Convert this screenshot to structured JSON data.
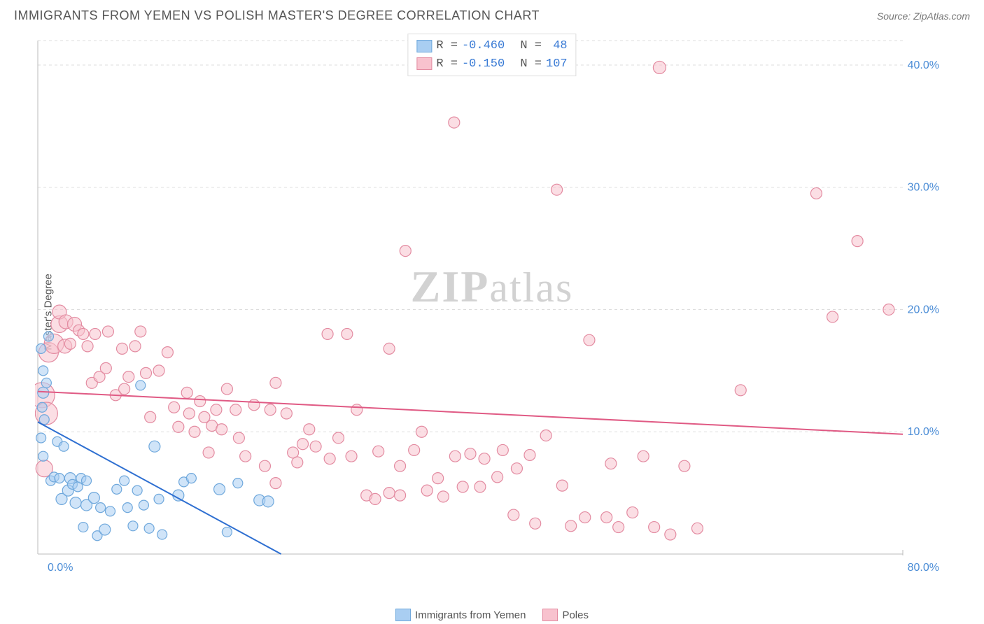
{
  "title": "IMMIGRANTS FROM YEMEN VS POLISH MASTER'S DEGREE CORRELATION CHART",
  "source": "Source: ZipAtlas.com",
  "y_axis_label": "Master's Degree",
  "watermark_a": "ZIP",
  "watermark_b": "atlas",
  "chart": {
    "type": "scatter",
    "xlim": [
      0,
      80
    ],
    "ylim": [
      0,
      42
    ],
    "x_label_min": "0.0%",
    "x_label_max": "80.0%",
    "y_ticks": [
      10,
      20,
      30,
      40
    ],
    "y_tick_labels": [
      "10.0%",
      "20.0%",
      "30.0%",
      "40.0%"
    ],
    "grid_color": "#dddddd",
    "axis_color": "#bbbbbb",
    "tick_label_color": "#4a8cd6",
    "background": "#ffffff",
    "series": [
      {
        "name": "Immigrants from Yemen",
        "fill": "#a9cef2",
        "fill_opacity": 0.55,
        "stroke": "#6fa8dc",
        "line_color": "#2e6fd1",
        "line_width": 2,
        "trend": {
          "x1": 0,
          "y1": 10.8,
          "x2": 22.5,
          "y2": 0
        },
        "R": "-0.460",
        "N": "48",
        "points": [
          {
            "x": 0.3,
            "y": 16.8,
            "r": 7
          },
          {
            "x": 0.5,
            "y": 15.0,
            "r": 7
          },
          {
            "x": 0.4,
            "y": 12.0,
            "r": 7
          },
          {
            "x": 0.5,
            "y": 13.2,
            "r": 8
          },
          {
            "x": 0.3,
            "y": 9.5,
            "r": 7
          },
          {
            "x": 0.6,
            "y": 11.0,
            "r": 7
          },
          {
            "x": 0.5,
            "y": 8.0,
            "r": 7
          },
          {
            "x": 0.8,
            "y": 14.0,
            "r": 7
          },
          {
            "x": 1.0,
            "y": 17.8,
            "r": 7
          },
          {
            "x": 1.2,
            "y": 6.0,
            "r": 7
          },
          {
            "x": 1.5,
            "y": 6.3,
            "r": 7
          },
          {
            "x": 1.8,
            "y": 9.2,
            "r": 7
          },
          {
            "x": 2.2,
            "y": 4.5,
            "r": 8
          },
          {
            "x": 2.0,
            "y": 6.2,
            "r": 7
          },
          {
            "x": 2.4,
            "y": 8.8,
            "r": 7
          },
          {
            "x": 2.8,
            "y": 5.2,
            "r": 8
          },
          {
            "x": 3.0,
            "y": 6.2,
            "r": 8
          },
          {
            "x": 3.2,
            "y": 5.7,
            "r": 7
          },
          {
            "x": 3.5,
            "y": 4.2,
            "r": 8
          },
          {
            "x": 3.7,
            "y": 5.5,
            "r": 7
          },
          {
            "x": 4.0,
            "y": 6.2,
            "r": 7
          },
          {
            "x": 4.2,
            "y": 2.2,
            "r": 7
          },
          {
            "x": 4.5,
            "y": 4.0,
            "r": 8
          },
          {
            "x": 4.5,
            "y": 6.0,
            "r": 7
          },
          {
            "x": 5.2,
            "y": 4.6,
            "r": 8
          },
          {
            "x": 5.5,
            "y": 1.5,
            "r": 7
          },
          {
            "x": 5.8,
            "y": 3.8,
            "r": 7
          },
          {
            "x": 6.2,
            "y": 2.0,
            "r": 8
          },
          {
            "x": 6.7,
            "y": 3.5,
            "r": 7
          },
          {
            "x": 7.3,
            "y": 5.3,
            "r": 7
          },
          {
            "x": 8.0,
            "y": 6.0,
            "r": 7
          },
          {
            "x": 8.3,
            "y": 3.8,
            "r": 7
          },
          {
            "x": 8.8,
            "y": 2.3,
            "r": 7
          },
          {
            "x": 9.2,
            "y": 5.2,
            "r": 7
          },
          {
            "x": 9.5,
            "y": 13.8,
            "r": 7
          },
          {
            "x": 9.8,
            "y": 4.0,
            "r": 7
          },
          {
            "x": 10.3,
            "y": 2.1,
            "r": 7
          },
          {
            "x": 10.8,
            "y": 8.8,
            "r": 8
          },
          {
            "x": 11.2,
            "y": 4.5,
            "r": 7
          },
          {
            "x": 11.5,
            "y": 1.6,
            "r": 7
          },
          {
            "x": 13.0,
            "y": 4.8,
            "r": 8
          },
          {
            "x": 13.5,
            "y": 5.9,
            "r": 7
          },
          {
            "x": 14.2,
            "y": 6.2,
            "r": 7
          },
          {
            "x": 16.8,
            "y": 5.3,
            "r": 8
          },
          {
            "x": 17.5,
            "y": 1.8,
            "r": 7
          },
          {
            "x": 18.5,
            "y": 5.8,
            "r": 7
          },
          {
            "x": 20.5,
            "y": 4.4,
            "r": 8
          },
          {
            "x": 21.3,
            "y": 4.3,
            "r": 8
          }
        ]
      },
      {
        "name": "Poles",
        "fill": "#f8c2ce",
        "fill_opacity": 0.55,
        "stroke": "#e38ba1",
        "line_color": "#e05a84",
        "line_width": 2,
        "trend": {
          "x1": 0,
          "y1": 13.3,
          "x2": 80,
          "y2": 9.8
        },
        "R": "-0.150",
        "N": "107",
        "points": [
          {
            "x": 0.4,
            "y": 13.0,
            "r": 18
          },
          {
            "x": 0.8,
            "y": 11.5,
            "r": 16
          },
          {
            "x": 1.0,
            "y": 16.5,
            "r": 14
          },
          {
            "x": 0.6,
            "y": 7.0,
            "r": 12
          },
          {
            "x": 1.5,
            "y": 17.2,
            "r": 14
          },
          {
            "x": 2.0,
            "y": 18.8,
            "r": 12
          },
          {
            "x": 2.0,
            "y": 19.8,
            "r": 10
          },
          {
            "x": 2.6,
            "y": 19.0,
            "r": 10
          },
          {
            "x": 2.5,
            "y": 17.0,
            "r": 10
          },
          {
            "x": 3.4,
            "y": 18.8,
            "r": 10
          },
          {
            "x": 3.0,
            "y": 17.2,
            "r": 8
          },
          {
            "x": 3.8,
            "y": 18.3,
            "r": 8
          },
          {
            "x": 4.2,
            "y": 18.0,
            "r": 8
          },
          {
            "x": 4.6,
            "y": 17.0,
            "r": 8
          },
          {
            "x": 5.3,
            "y": 18.0,
            "r": 8
          },
          {
            "x": 5.0,
            "y": 14.0,
            "r": 8
          },
          {
            "x": 5.7,
            "y": 14.5,
            "r": 8
          },
          {
            "x": 6.3,
            "y": 15.2,
            "r": 8
          },
          {
            "x": 6.5,
            "y": 18.2,
            "r": 8
          },
          {
            "x": 7.2,
            "y": 13.0,
            "r": 8
          },
          {
            "x": 7.8,
            "y": 16.8,
            "r": 8
          },
          {
            "x": 8.0,
            "y": 13.5,
            "r": 8
          },
          {
            "x": 8.4,
            "y": 14.5,
            "r": 8
          },
          {
            "x": 9.0,
            "y": 17.0,
            "r": 8
          },
          {
            "x": 9.5,
            "y": 18.2,
            "r": 8
          },
          {
            "x": 10.0,
            "y": 14.8,
            "r": 8
          },
          {
            "x": 10.4,
            "y": 11.2,
            "r": 8
          },
          {
            "x": 11.2,
            "y": 15.0,
            "r": 8
          },
          {
            "x": 12.0,
            "y": 16.5,
            "r": 8
          },
          {
            "x": 12.6,
            "y": 12.0,
            "r": 8
          },
          {
            "x": 13.0,
            "y": 10.4,
            "r": 8
          },
          {
            "x": 13.8,
            "y": 13.2,
            "r": 8
          },
          {
            "x": 14.0,
            "y": 11.5,
            "r": 8
          },
          {
            "x": 14.5,
            "y": 10.0,
            "r": 8
          },
          {
            "x": 15.0,
            "y": 12.5,
            "r": 8
          },
          {
            "x": 15.4,
            "y": 11.2,
            "r": 8
          },
          {
            "x": 15.8,
            "y": 8.3,
            "r": 8
          },
          {
            "x": 16.1,
            "y": 10.5,
            "r": 8
          },
          {
            "x": 16.5,
            "y": 11.8,
            "r": 8
          },
          {
            "x": 17.0,
            "y": 10.2,
            "r": 8
          },
          {
            "x": 17.5,
            "y": 13.5,
            "r": 8
          },
          {
            "x": 18.3,
            "y": 11.8,
            "r": 8
          },
          {
            "x": 18.6,
            "y": 9.5,
            "r": 8
          },
          {
            "x": 19.2,
            "y": 8.0,
            "r": 8
          },
          {
            "x": 20.0,
            "y": 12.2,
            "r": 8
          },
          {
            "x": 21.0,
            "y": 7.2,
            "r": 8
          },
          {
            "x": 21.5,
            "y": 11.8,
            "r": 8
          },
          {
            "x": 22.0,
            "y": 5.8,
            "r": 8
          },
          {
            "x": 22.0,
            "y": 14.0,
            "r": 8
          },
          {
            "x": 23.0,
            "y": 11.5,
            "r": 8
          },
          {
            "x": 23.6,
            "y": 8.3,
            "r": 8
          },
          {
            "x": 24.5,
            "y": 9.0,
            "r": 8
          },
          {
            "x": 24.0,
            "y": 7.5,
            "r": 8
          },
          {
            "x": 25.1,
            "y": 10.2,
            "r": 8
          },
          {
            "x": 25.7,
            "y": 8.8,
            "r": 8
          },
          {
            "x": 26.8,
            "y": 18.0,
            "r": 8
          },
          {
            "x": 27.0,
            "y": 7.8,
            "r": 8
          },
          {
            "x": 27.8,
            "y": 9.5,
            "r": 8
          },
          {
            "x": 28.6,
            "y": 18.0,
            "r": 8
          },
          {
            "x": 29.0,
            "y": 8.0,
            "r": 8
          },
          {
            "x": 29.5,
            "y": 11.8,
            "r": 8
          },
          {
            "x": 30.4,
            "y": 4.8,
            "r": 8
          },
          {
            "x": 31.2,
            "y": 4.5,
            "r": 8
          },
          {
            "x": 31.5,
            "y": 8.4,
            "r": 8
          },
          {
            "x": 32.5,
            "y": 5.0,
            "r": 8
          },
          {
            "x": 32.5,
            "y": 16.8,
            "r": 8
          },
          {
            "x": 33.5,
            "y": 7.2,
            "r": 8
          },
          {
            "x": 33.5,
            "y": 4.8,
            "r": 8
          },
          {
            "x": 34.8,
            "y": 8.5,
            "r": 8
          },
          {
            "x": 34.0,
            "y": 24.8,
            "r": 8
          },
          {
            "x": 35.5,
            "y": 10.0,
            "r": 8
          },
          {
            "x": 36.0,
            "y": 5.2,
            "r": 8
          },
          {
            "x": 37.0,
            "y": 6.2,
            "r": 8
          },
          {
            "x": 37.5,
            "y": 4.7,
            "r": 8
          },
          {
            "x": 38.6,
            "y": 8.0,
            "r": 8
          },
          {
            "x": 38.5,
            "y": 35.3,
            "r": 8
          },
          {
            "x": 39.3,
            "y": 5.5,
            "r": 8
          },
          {
            "x": 40.0,
            "y": 8.2,
            "r": 8
          },
          {
            "x": 40.9,
            "y": 5.5,
            "r": 8
          },
          {
            "x": 41.3,
            "y": 7.8,
            "r": 8
          },
          {
            "x": 42.5,
            "y": 6.3,
            "r": 8
          },
          {
            "x": 43.0,
            "y": 8.5,
            "r": 8
          },
          {
            "x": 44.0,
            "y": 3.2,
            "r": 8
          },
          {
            "x": 44.3,
            "y": 7.0,
            "r": 8
          },
          {
            "x": 45.5,
            "y": 8.1,
            "r": 8
          },
          {
            "x": 46.0,
            "y": 2.5,
            "r": 8
          },
          {
            "x": 47.0,
            "y": 9.7,
            "r": 8
          },
          {
            "x": 48.5,
            "y": 5.6,
            "r": 8
          },
          {
            "x": 48.0,
            "y": 29.8,
            "r": 8
          },
          {
            "x": 49.3,
            "y": 2.3,
            "r": 8
          },
          {
            "x": 50.6,
            "y": 3.0,
            "r": 8
          },
          {
            "x": 51.0,
            "y": 17.5,
            "r": 8
          },
          {
            "x": 52.6,
            "y": 3.0,
            "r": 8
          },
          {
            "x": 53.0,
            "y": 7.4,
            "r": 8
          },
          {
            "x": 53.7,
            "y": 2.2,
            "r": 8
          },
          {
            "x": 55.0,
            "y": 3.4,
            "r": 8
          },
          {
            "x": 56.0,
            "y": 8.0,
            "r": 8
          },
          {
            "x": 57.0,
            "y": 2.2,
            "r": 8
          },
          {
            "x": 58.5,
            "y": 1.6,
            "r": 8
          },
          {
            "x": 57.5,
            "y": 39.8,
            "r": 9
          },
          {
            "x": 59.8,
            "y": 7.2,
            "r": 8
          },
          {
            "x": 61.0,
            "y": 2.1,
            "r": 8
          },
          {
            "x": 65.0,
            "y": 13.4,
            "r": 8
          },
          {
            "x": 72.0,
            "y": 29.5,
            "r": 8
          },
          {
            "x": 73.5,
            "y": 19.4,
            "r": 8
          },
          {
            "x": 75.8,
            "y": 25.6,
            "r": 8
          },
          {
            "x": 78.7,
            "y": 20.0,
            "r": 8
          }
        ]
      }
    ]
  },
  "legend": {
    "series1_label": "Immigrants from Yemen",
    "series2_label": "Poles",
    "series1_fill": "#a9cef2",
    "series1_stroke": "#6fa8dc",
    "series2_fill": "#f8c2ce",
    "series2_stroke": "#e38ba1"
  },
  "stats_box": {
    "R_label": "R =",
    "N_label": "N ="
  }
}
